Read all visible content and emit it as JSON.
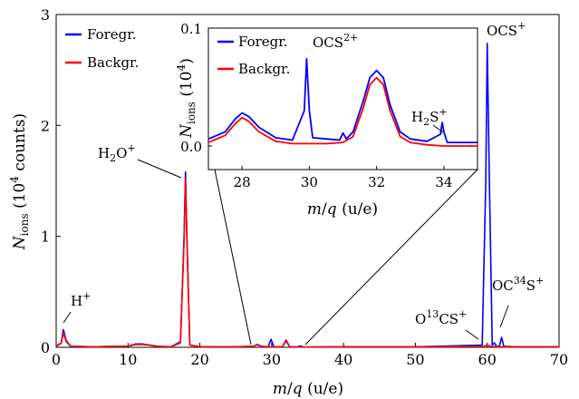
{
  "chart_data": {
    "type": "line",
    "main": {
      "xlabel": "m/q (u/e)",
      "ylabel": "N_ions (10^4 counts)",
      "xlim": [
        0,
        70
      ],
      "ylim": [
        0,
        3
      ],
      "xticks": [
        "0",
        "10",
        "20",
        "30",
        "40",
        "50",
        "60",
        "70"
      ],
      "yticks": [
        "0",
        "1",
        "2",
        "3"
      ],
      "legend": {
        "placement": "top-left",
        "entries": [
          "Foregr.",
          "Backgr."
        ]
      },
      "series": [
        {
          "name": "Foregr.",
          "color": "#0000ff",
          "x": [
            0,
            0.7,
            1.0,
            1.4,
            2,
            5,
            10,
            11,
            12,
            13,
            14,
            16,
            17.3,
            17.8,
            18.0,
            18.2,
            18.6,
            20,
            25,
            27.5,
            28.0,
            28.5,
            29.5,
            29.9,
            30.3,
            31.5,
            32.0,
            32.5,
            33.5,
            34.0,
            34.5,
            40,
            50,
            59.3,
            59.8,
            60.0,
            60.3,
            60.7,
            61.0,
            61.3,
            61.7,
            62.0,
            62.3,
            64,
            70
          ],
          "y": [
            0.01,
            0.04,
            0.16,
            0.06,
            0.01,
            0.005,
            0.01,
            0.03,
            0.03,
            0.02,
            0.01,
            0.005,
            0.05,
            1.0,
            1.58,
            1.0,
            0.02,
            0.005,
            0.005,
            0.01,
            0.027,
            0.01,
            0.005,
            0.072,
            0.005,
            0.006,
            0.065,
            0.006,
            0.003,
            0.012,
            0.002,
            0.005,
            0.005,
            0.02,
            1.5,
            2.74,
            1.5,
            0.02,
            0.04,
            0.01,
            0.01,
            0.09,
            0.01,
            0.005,
            0.005
          ]
        },
        {
          "name": "Backgr.",
          "color": "#ff0000",
          "x": [
            0,
            0.7,
            1.0,
            1.4,
            2,
            5,
            10,
            11,
            12,
            13,
            14,
            16,
            17.3,
            17.8,
            18.0,
            18.2,
            18.6,
            20,
            25,
            27.5,
            28.0,
            28.5,
            29.5,
            31.5,
            32.0,
            32.5,
            33.5,
            40,
            50,
            59.5,
            60.0,
            60.5,
            62,
            70
          ],
          "y": [
            0.01,
            0.035,
            0.13,
            0.05,
            0.01,
            0.005,
            0.01,
            0.025,
            0.025,
            0.02,
            0.01,
            0.005,
            0.04,
            0.95,
            1.52,
            0.95,
            0.02,
            0.005,
            0.005,
            0.01,
            0.022,
            0.008,
            0.005,
            0.005,
            0.058,
            0.005,
            0.003,
            0.005,
            0.005,
            0.008,
            0.02,
            0.008,
            0.005,
            0.005
          ]
        }
      ],
      "annotations": [
        {
          "id": "h",
          "text": "H",
          "sup": "+",
          "sub": "",
          "mid": "",
          "x": 1.0,
          "y": 0.16
        },
        {
          "id": "h2o",
          "text": "H",
          "sub": "2",
          "mid": "O",
          "sup": "+",
          "x": 18.0,
          "y": 1.58
        },
        {
          "id": "ocs",
          "text": "OCS",
          "sup": "+",
          "sub": "",
          "mid": "",
          "x": 60.0,
          "y": 2.74
        },
        {
          "id": "o13cs",
          "text": "O",
          "sup": "13",
          "mid": "CS",
          "sup2": "+",
          "x": 61.0,
          "y": 0.04
        },
        {
          "id": "oc34s",
          "text": "OC",
          "sup": "34",
          "mid": "S",
          "sup2": "+",
          "x": 62.0,
          "y": 0.09
        }
      ]
    },
    "inset": {
      "xlabel": "m/q (u/e)",
      "ylabel": "N_ions (10^4)",
      "xlim": [
        27,
        35
      ],
      "ylim": [
        -0.02,
        0.1
      ],
      "xticks": [
        "28",
        "30",
        "32",
        "34"
      ],
      "yticks": [
        "0.0",
        "0.1"
      ],
      "legend": {
        "placement": "top-left",
        "entries": [
          "Foregr.",
          "Backgr."
        ]
      },
      "series": [
        {
          "name": "Foregr.",
          "color": "#0000ff",
          "x": [
            27.0,
            27.5,
            27.8,
            28.0,
            28.2,
            28.5,
            29.0,
            29.5,
            29.85,
            29.92,
            30.0,
            30.1,
            30.5,
            30.9,
            31.0,
            31.1,
            31.3,
            31.6,
            31.8,
            32.0,
            32.2,
            32.4,
            32.7,
            33.0,
            33.5,
            33.9,
            33.95,
            34.0,
            34.1,
            34.5,
            35.0
          ],
          "y": [
            0.006,
            0.012,
            0.023,
            0.028,
            0.025,
            0.016,
            0.007,
            0.005,
            0.03,
            0.074,
            0.03,
            0.007,
            0.006,
            0.005,
            0.011,
            0.006,
            0.012,
            0.038,
            0.058,
            0.064,
            0.058,
            0.035,
            0.012,
            0.006,
            0.004,
            0.01,
            0.02,
            0.012,
            0.003,
            0.003,
            0.003
          ]
        },
        {
          "name": "Backgr.",
          "color": "#ff0000",
          "x": [
            27.0,
            27.5,
            27.8,
            28.0,
            28.2,
            28.5,
            29.0,
            29.5,
            30.0,
            30.5,
            31.0,
            31.3,
            31.6,
            31.8,
            32.0,
            32.2,
            32.4,
            32.7,
            33.0,
            33.5,
            34.0,
            34.5,
            35.0
          ],
          "y": [
            0.003,
            0.009,
            0.019,
            0.024,
            0.021,
            0.012,
            0.004,
            0.002,
            0.002,
            0.002,
            0.003,
            0.008,
            0.032,
            0.052,
            0.058,
            0.052,
            0.03,
            0.008,
            0.003,
            0.001,
            0.0,
            0.0,
            0.0
          ]
        }
      ],
      "annotations": [
        {
          "id": "ocs2",
          "text": "OCS",
          "sup": "2+",
          "sub": "",
          "mid": "",
          "x": 29.92,
          "y": 0.074
        },
        {
          "id": "h2s",
          "text": "H",
          "sub": "2",
          "mid": "S",
          "sup": "+",
          "x": 34.0,
          "y": 0.02
        }
      ]
    }
  }
}
